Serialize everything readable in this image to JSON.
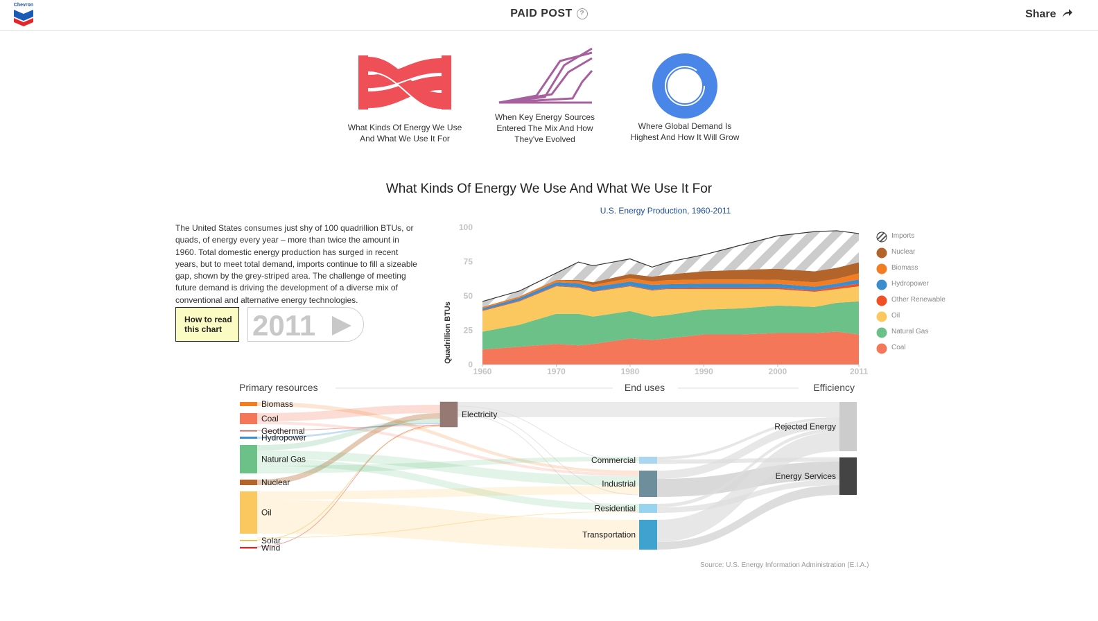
{
  "header": {
    "logo_text": "Chevron",
    "paid_post": "PAID POST",
    "help_glyph": "?",
    "share": "Share"
  },
  "tiles": [
    {
      "line1": "What Kinds Of Energy We Use",
      "line2": "And What We Use It For",
      "icon": "sankey-icon",
      "color": "#ef5057"
    },
    {
      "line1": "When Key Energy Sources",
      "line2": "Entered The Mix And How",
      "line3": "They've Evolved",
      "icon": "lines-icon",
      "color": "#a7609e"
    },
    {
      "line1": "Where Global Demand Is",
      "line2": "Highest And How It Will Grow",
      "icon": "donut-icon",
      "color": "#4a86e8"
    }
  ],
  "section": {
    "title": "What Kinds Of Energy We Use And What We Use It For",
    "body": "The United States consumes just shy of 100 quadrillion BTUs, or quads, of energy every year – more than twice the amount in 1960. Total domestic energy production has surged in recent years, but to meet total demand, imports continue to fill a sizeable gap, shown by the grey-striped area. The challenge of meeting future demand is driving the development of a diverse mix of conventional and alternative energy technologies.",
    "howto": "How to read this chart",
    "year": "2011",
    "source": "Source: U.S. Energy Information Administration (E.I.A.)"
  },
  "chart_data": [
    {
      "type": "area",
      "title": "U.S. Energy Production, 1960-2011",
      "xlabel": "",
      "ylabel": "Quadrillion BTUs",
      "xlim": [
        1960,
        2011
      ],
      "ylim": [
        0,
        100
      ],
      "x_ticks": [
        1960,
        1970,
        1980,
        1990,
        2000,
        2011
      ],
      "y_ticks": [
        0,
        25,
        50,
        75,
        100
      ],
      "legend_position": "right",
      "x": [
        1960,
        1965,
        1970,
        1973,
        1975,
        1980,
        1983,
        1985,
        1990,
        1995,
        2000,
        2005,
        2008,
        2011
      ],
      "series": [
        {
          "name": "Coal",
          "color": "#f4775a",
          "values": [
            11,
            13,
            15,
            14,
            15,
            19,
            18,
            19,
            22,
            22,
            23,
            23,
            24,
            22
          ]
        },
        {
          "name": "Natural Gas",
          "color": "#6cc189",
          "values": [
            13,
            16,
            22,
            23,
            20,
            20,
            17,
            17,
            18,
            19,
            20,
            19,
            21,
            24
          ]
        },
        {
          "name": "Oil",
          "color": "#fbc85f",
          "values": [
            15,
            17,
            20,
            19,
            18,
            18,
            19,
            19,
            15,
            14,
            12,
            11,
            10,
            11
          ]
        },
        {
          "name": "Other Renewable",
          "color": "#f05024",
          "values": [
            0.5,
            0.5,
            0.5,
            0.5,
            0.5,
            0.5,
            0.5,
            0.5,
            1,
            1,
            1,
            1,
            1.5,
            2
          ]
        },
        {
          "name": "Hydropower",
          "color": "#3b8dce",
          "values": [
            1.5,
            2,
            2.5,
            2.7,
            3,
            3,
            3.5,
            3,
            3,
            3,
            2.8,
            2.7,
            2.5,
            3
          ]
        },
        {
          "name": "Biomass",
          "color": "#f27d22",
          "values": [
            1,
            1,
            1.5,
            1.5,
            1.5,
            2.5,
            2.5,
            3,
            3,
            3,
            3,
            3.2,
            3.5,
            4.5
          ]
        },
        {
          "name": "Nuclear",
          "color": "#b2642a",
          "values": [
            0,
            0.1,
            0.2,
            1,
            2,
            3,
            3.5,
            4,
            6,
            7,
            8,
            8,
            8,
            8
          ]
        },
        {
          "name": "Imports",
          "color": "#cccccc",
          "values": [
            4,
            4,
            5,
            13,
            12,
            11,
            7,
            9,
            12,
            18,
            24,
            29,
            27,
            21
          ]
        }
      ]
    },
    {
      "type": "sankey",
      "axis_labels": [
        "Primary resources",
        "End uses",
        "Efficiency"
      ],
      "sources": [
        {
          "name": "Biomass",
          "value": 4.5,
          "color": "#f27d22"
        },
        {
          "name": "Coal",
          "value": 19.7,
          "color": "#f4775a"
        },
        {
          "name": "Geothermal",
          "value": 0.2,
          "color": "#e8473a"
        },
        {
          "name": "Hydropower",
          "value": 3.2,
          "color": "#3b8dce"
        },
        {
          "name": "Natural Gas",
          "value": 24.9,
          "color": "#6cc189"
        },
        {
          "name": "Nuclear",
          "value": 8.3,
          "color": "#b2642a"
        },
        {
          "name": "Oil",
          "value": 35.3,
          "color": "#fbc85f"
        },
        {
          "name": "Solar",
          "value": 0.2,
          "color": "#f5b02a"
        },
        {
          "name": "Wind",
          "value": 1.2,
          "color": "#d92d2d"
        }
      ],
      "intermediate": [
        {
          "name": "Electricity",
          "color": "#977973"
        }
      ],
      "end_uses": [
        {
          "name": "Commercial",
          "color": "#aad6ef"
        },
        {
          "name": "Industrial",
          "color": "#6f8e9b"
        },
        {
          "name": "Residential",
          "color": "#98d4ef"
        },
        {
          "name": "Transportation",
          "color": "#40a3cf"
        }
      ],
      "efficiency": [
        {
          "name": "Rejected Energy",
          "color": "#cccccc"
        },
        {
          "name": "Energy Services",
          "color": "#444444"
        }
      ]
    }
  ]
}
